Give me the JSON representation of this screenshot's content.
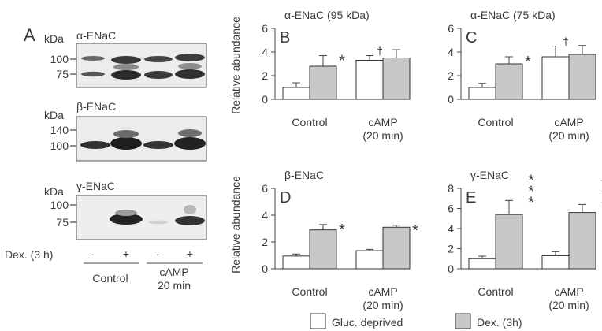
{
  "panel_a": {
    "letter": "A",
    "blots": [
      {
        "protein": "α-ENaC",
        "kda_label": "kDa",
        "markers": [
          "100",
          "75"
        ]
      },
      {
        "protein": "β-ENaC",
        "kda_label": "kDa",
        "markers": [
          "140",
          "100"
        ]
      },
      {
        "protein": "γ-ENaC",
        "kda_label": "kDa",
        "markers": [
          "100",
          "75"
        ]
      }
    ],
    "lanes": [
      "-",
      "+",
      "-",
      "+"
    ],
    "treatment_label": "Dex. (3 h)",
    "groups": [
      {
        "line1": "Control",
        "line2": ""
      },
      {
        "line1": "cAMP",
        "line2": "20 min"
      }
    ]
  },
  "shared": {
    "ylabel": "Relative abundance",
    "categories": [
      {
        "line1": "Control",
        "line2": ""
      },
      {
        "line1": "cAMP",
        "line2": "(20 min)"
      }
    ]
  },
  "legend": {
    "items": [
      {
        "label": "Gluc. deprived",
        "color": "#ffffff"
      },
      {
        "label": "Dex. (3h)",
        "color": "#c8c8c8"
      }
    ]
  },
  "chart_data": [
    {
      "type": "bar",
      "panel": "B",
      "title": "α-ENaC (95 kDa)",
      "ylim": [
        0,
        6
      ],
      "yticks": [
        0,
        2,
        4,
        6
      ],
      "categories": [
        "Control",
        "cAMP (20 min)"
      ],
      "series": [
        {
          "name": "Gluc. deprived",
          "values": [
            1.0,
            3.3
          ],
          "errors": [
            0.4,
            0.4
          ]
        },
        {
          "name": "Dex. (3h)",
          "values": [
            2.8,
            3.5
          ],
          "errors": [
            0.9,
            0.7
          ]
        }
      ],
      "marks": [
        {
          "category": 0,
          "series": 1,
          "text": "*"
        },
        {
          "category": 1,
          "series": 0,
          "text": "†"
        }
      ]
    },
    {
      "type": "bar",
      "panel": "C",
      "title": "α-ENaC (75 kDa)",
      "ylim": [
        0,
        6
      ],
      "yticks": [
        0,
        2,
        4,
        6
      ],
      "categories": [
        "Control",
        "cAMP (20 min)"
      ],
      "series": [
        {
          "name": "Gluc. deprived",
          "values": [
            1.0,
            3.6
          ],
          "errors": [
            0.35,
            0.9
          ]
        },
        {
          "name": "Dex. (3h)",
          "values": [
            3.0,
            3.8
          ],
          "errors": [
            0.6,
            0.75
          ]
        }
      ],
      "marks": [
        {
          "category": 0,
          "series": 1,
          "text": "*"
        },
        {
          "category": 1,
          "series": 0,
          "text": "†"
        }
      ]
    },
    {
      "type": "bar",
      "panel": "D",
      "title": "β-ENaC",
      "ylim": [
        0,
        6
      ],
      "yticks": [
        0,
        2,
        4,
        6
      ],
      "categories": [
        "Control",
        "cAMP (20 min)"
      ],
      "series": [
        {
          "name": "Gluc. deprived",
          "values": [
            0.95,
            1.35
          ],
          "errors": [
            0.15,
            0.1
          ]
        },
        {
          "name": "Dex. (3h)",
          "values": [
            2.9,
            3.1
          ],
          "errors": [
            0.4,
            0.15
          ]
        }
      ],
      "marks": [
        {
          "category": 0,
          "series": 1,
          "text": "*"
        },
        {
          "category": 1,
          "series": 1,
          "text": "*"
        }
      ]
    },
    {
      "type": "bar",
      "panel": "E",
      "title": "γ-ENaC",
      "ylim": [
        0,
        8
      ],
      "yticks": [
        0,
        2,
        4,
        6,
        8
      ],
      "categories": [
        "Control",
        "cAMP (20 min)"
      ],
      "series": [
        {
          "name": "Gluc. deprived",
          "values": [
            1.0,
            1.3
          ],
          "errors": [
            0.25,
            0.4
          ]
        },
        {
          "name": "Dex. (3h)",
          "values": [
            5.4,
            5.6
          ],
          "errors": [
            1.4,
            0.8
          ]
        }
      ],
      "marks": [
        {
          "category": 0,
          "series": 1,
          "text": "***"
        },
        {
          "category": 1,
          "series": 1,
          "text": "***"
        }
      ]
    }
  ]
}
